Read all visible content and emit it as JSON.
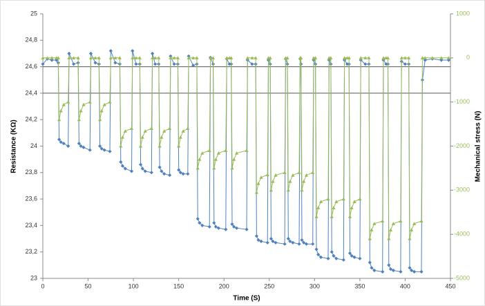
{
  "chart_data": {
    "type": "line",
    "x_label": "Time (S)",
    "y_label": "Resistance (KΩ)",
    "y2_label": "Mechanical stress (N)",
    "xlim": [
      0,
      450
    ],
    "xticks": [
      0,
      50,
      100,
      150,
      200,
      250,
      300,
      350,
      400,
      450
    ],
    "ylim": [
      23,
      25
    ],
    "yticks": [
      23,
      {
        "value": 23.2,
        "label": "23,2"
      },
      {
        "value": 23.4,
        "label": "23,4"
      },
      {
        "value": 23.6,
        "label": "23,6"
      },
      {
        "value": 23.8,
        "label": "23,8"
      },
      24,
      {
        "value": 24.2,
        "label": "24,2"
      },
      {
        "value": 24.4,
        "label": "24,4"
      },
      {
        "value": 24.6,
        "label": "24,6"
      },
      {
        "value": 24.8,
        "label": "24,8"
      },
      25
    ],
    "y2lim": [
      -5000,
      1000
    ],
    "y2ticks": [
      -5000,
      -4000,
      -3000,
      -2000,
      -1000,
      0,
      1000
    ],
    "reference_lines": [
      24.6,
      24.4
    ],
    "x": [
      0,
      5,
      10,
      15,
      17,
      18,
      20,
      23,
      28,
      29,
      34,
      39,
      40,
      42,
      45,
      52,
      53,
      58,
      62,
      63,
      65,
      68,
      74,
      75,
      80,
      85,
      86,
      88,
      91,
      98,
      99,
      103,
      107,
      108,
      110,
      113,
      120,
      121,
      124,
      128,
      129,
      131,
      134,
      140,
      141,
      145,
      149,
      150,
      152,
      155,
      160,
      161,
      166,
      170,
      171,
      173,
      176,
      184,
      185,
      188,
      189,
      191,
      194,
      202,
      203,
      206,
      208,
      209,
      211,
      214,
      225,
      226,
      231,
      235,
      236,
      238,
      241,
      248,
      249,
      251,
      252,
      254,
      257,
      267,
      268,
      270,
      271,
      273,
      276,
      283,
      284,
      285,
      286,
      288,
      291,
      298,
      299,
      301,
      302,
      304,
      307,
      315,
      316,
      318,
      319,
      321,
      324,
      332,
      333,
      336,
      338,
      339,
      341,
      344,
      350,
      351,
      356,
      360,
      361,
      363,
      366,
      375,
      376,
      379,
      381,
      382,
      384,
      387,
      395,
      396,
      400,
      404,
      405,
      407,
      410,
      418,
      419,
      422,
      430,
      440,
      448
    ],
    "series": [
      {
        "name": "Resistance",
        "color": "#4f81bd",
        "marker": "diamond",
        "values": [
          24.62,
          24.66,
          24.65,
          24.65,
          24.63,
          24.05,
          24.03,
          24.02,
          24.0,
          24.7,
          24.62,
          24.63,
          24.02,
          24.0,
          23.99,
          23.97,
          24.7,
          24.63,
          24.62,
          24.0,
          23.98,
          23.97,
          23.96,
          24.72,
          24.63,
          24.62,
          23.88,
          23.85,
          23.83,
          23.81,
          24.72,
          24.62,
          24.62,
          23.86,
          23.83,
          23.81,
          23.8,
          24.7,
          24.62,
          24.62,
          23.84,
          23.81,
          23.79,
          23.78,
          24.68,
          24.62,
          24.62,
          23.82,
          23.8,
          23.79,
          23.79,
          24.68,
          24.61,
          24.62,
          23.45,
          23.42,
          23.4,
          23.39,
          24.67,
          24.62,
          23.42,
          23.39,
          23.38,
          23.37,
          24.66,
          24.62,
          24.62,
          23.41,
          23.39,
          23.38,
          23.37,
          24.65,
          24.62,
          24.62,
          23.32,
          23.29,
          23.28,
          23.27,
          24.65,
          24.62,
          23.3,
          23.28,
          23.27,
          23.26,
          24.66,
          24.62,
          23.3,
          23.28,
          23.27,
          23.26,
          24.66,
          24.62,
          23.29,
          23.27,
          23.26,
          23.26,
          24.65,
          24.62,
          23.22,
          23.18,
          23.16,
          23.15,
          24.65,
          24.62,
          23.2,
          23.17,
          23.15,
          23.14,
          24.65,
          24.62,
          24.62,
          23.19,
          23.17,
          23.16,
          23.15,
          24.65,
          24.62,
          24.62,
          23.12,
          23.08,
          23.06,
          23.05,
          24.65,
          24.62,
          24.62,
          23.1,
          23.07,
          23.06,
          23.05,
          24.64,
          24.62,
          24.62,
          23.08,
          23.06,
          23.05,
          23.05,
          24.5,
          24.65,
          24.66,
          24.65,
          24.65
        ]
      },
      {
        "name": "Mechanical stress",
        "color": "#9bbb59",
        "marker": "triangle",
        "axis": "y2",
        "values": [
          0,
          0,
          0,
          0,
          0,
          -1400,
          -1200,
          -1060,
          -1000,
          0,
          0,
          0,
          -1400,
          -1200,
          -1060,
          -1000,
          0,
          0,
          0,
          -1400,
          -1200,
          -1060,
          -1000,
          0,
          0,
          0,
          -2000,
          -1800,
          -1660,
          -1600,
          0,
          0,
          0,
          -2000,
          -1800,
          -1660,
          -1600,
          0,
          0,
          0,
          -2000,
          -1800,
          -1660,
          -1600,
          0,
          0,
          0,
          -2000,
          -1800,
          -1660,
          -1600,
          0,
          0,
          0,
          -2500,
          -2300,
          -2160,
          -2100,
          0,
          0,
          -2500,
          -2300,
          -2160,
          -2100,
          0,
          0,
          0,
          -2500,
          -2300,
          -2160,
          -2100,
          0,
          0,
          0,
          -3050,
          -2850,
          -2710,
          -2650,
          0,
          0,
          -3000,
          -2800,
          -2660,
          -2600,
          0,
          0,
          -3000,
          -2800,
          -2660,
          -2600,
          0,
          0,
          -3000,
          -2800,
          -2660,
          -2600,
          0,
          0,
          -3600,
          -3400,
          -3260,
          -3200,
          0,
          0,
          -3600,
          -3400,
          -3260,
          -3200,
          0,
          0,
          0,
          -3600,
          -3400,
          -3260,
          -3200,
          0,
          0,
          0,
          -4100,
          -3900,
          -3760,
          -3700,
          0,
          0,
          0,
          -4100,
          -3900,
          -3760,
          -3700,
          0,
          0,
          0,
          -4100,
          -3900,
          -3760,
          -3700,
          0,
          0,
          0,
          0,
          0
        ]
      }
    ]
  }
}
